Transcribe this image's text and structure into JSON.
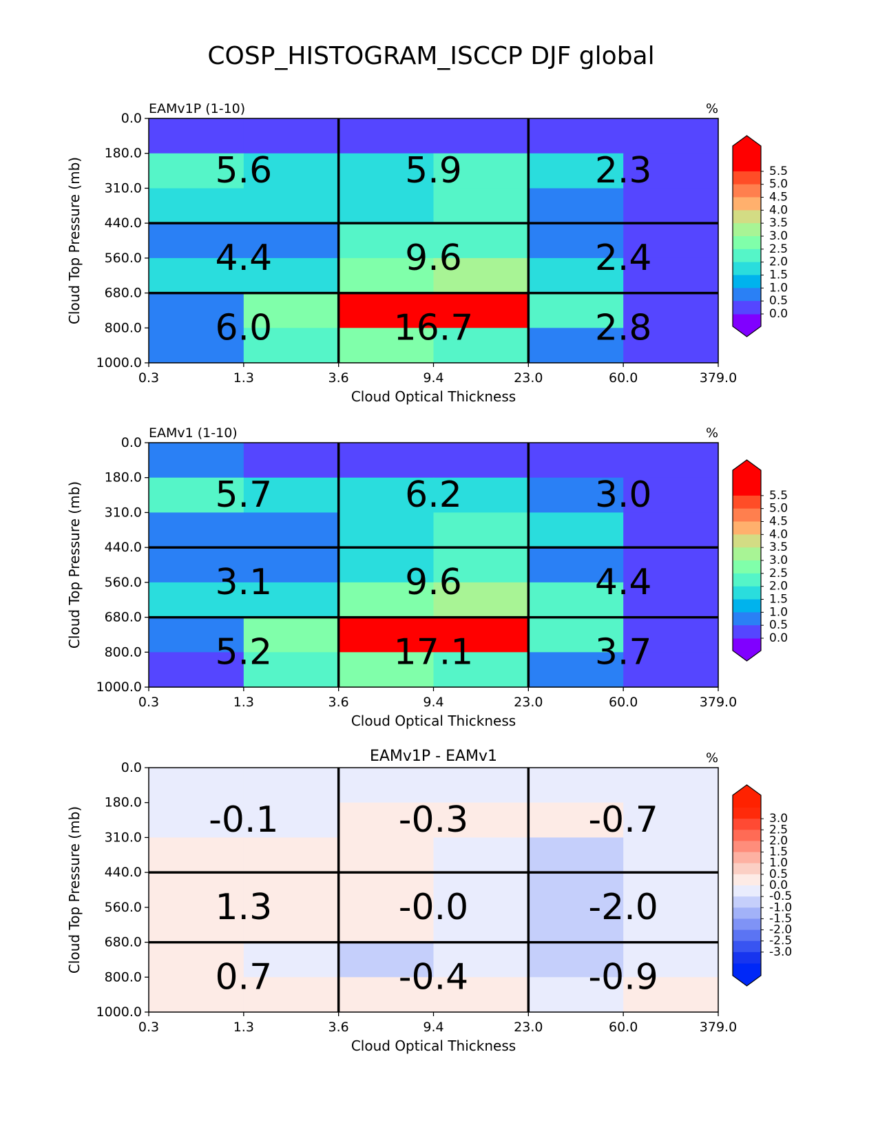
{
  "figure": {
    "title": "COSP_HISTOGRAM_ISCCP DJF global"
  },
  "chart_data": [
    {
      "type": "heatmap",
      "title": "EAMv1P (1-10)",
      "units": "%",
      "xlabel": "Cloud Optical Thickness",
      "ylabel": "Cloud Top Pressure (mb)",
      "x_ticks": [
        "0.3",
        "1.3",
        "3.6",
        "9.4",
        "23.0",
        "60.0",
        "379.0"
      ],
      "y_ticks": [
        "0.0",
        "180.0",
        "310.0",
        "440.0",
        "560.0",
        "680.0",
        "800.0",
        "1000.0"
      ],
      "cells": [
        [
          0.2,
          0.2,
          0.2,
          0.2,
          0.2,
          0.2
        ],
        [
          2.0,
          1.5,
          1.5,
          2.0,
          1.5,
          0.2
        ],
        [
          1.5,
          1.5,
          1.5,
          2.0,
          0.8,
          0.2
        ],
        [
          0.8,
          0.8,
          2.0,
          2.0,
          0.8,
          0.2
        ],
        [
          1.5,
          1.5,
          2.8,
          3.3,
          1.5,
          0.2
        ],
        [
          0.8,
          2.8,
          5.8,
          5.8,
          2.3,
          0.2
        ],
        [
          0.8,
          2.0,
          2.8,
          2.3,
          0.8,
          0.2
        ]
      ],
      "block_values": [
        [
          "5.6",
          "5.9",
          "2.3"
        ],
        [
          "4.4",
          "9.6",
          "2.4"
        ],
        [
          "6.0",
          "16.7",
          "2.8"
        ]
      ],
      "colorbar": {
        "ticks": [
          "5.5",
          "5.0",
          "4.5",
          "4.0",
          "3.5",
          "3.0",
          "2.5",
          "2.0",
          "1.5",
          "1.0",
          "0.5",
          "0.0"
        ],
        "colors": [
          "#ff0000",
          "#ff4d27",
          "#ff7f4e",
          "#ffb06d",
          "#d3dc84",
          "#a8f495",
          "#80ffaa",
          "#55f5c8",
          "#2adddd",
          "#00b3ed",
          "#2a80f5",
          "#5546ff"
        ],
        "under_color": "#8000ff",
        "over_color": "#ff0000",
        "min": 0.0,
        "max": 6.0
      }
    },
    {
      "type": "heatmap",
      "title": "EAMv1 (1-10)",
      "units": "%",
      "xlabel": "Cloud Optical Thickness",
      "ylabel": "Cloud Top Pressure (mb)",
      "x_ticks": [
        "0.3",
        "1.3",
        "3.6",
        "9.4",
        "23.0",
        "60.0",
        "379.0"
      ],
      "y_ticks": [
        "0.0",
        "180.0",
        "310.0",
        "440.0",
        "560.0",
        "680.0",
        "800.0",
        "1000.0"
      ],
      "cells": [
        [
          0.8,
          0.2,
          0.2,
          0.2,
          0.2,
          0.2
        ],
        [
          2.0,
          1.5,
          1.5,
          1.5,
          0.8,
          0.2
        ],
        [
          0.8,
          0.8,
          1.5,
          2.3,
          1.5,
          0.2
        ],
        [
          0.8,
          0.8,
          1.5,
          2.0,
          0.8,
          0.2
        ],
        [
          1.5,
          1.5,
          2.8,
          3.3,
          2.3,
          0.2
        ],
        [
          0.8,
          2.8,
          5.8,
          5.8,
          2.3,
          0.2
        ],
        [
          0.2,
          2.0,
          2.8,
          2.0,
          0.8,
          0.2
        ]
      ],
      "block_values": [
        [
          "5.7",
          "6.2",
          "3.0"
        ],
        [
          "3.1",
          "9.6",
          "4.4"
        ],
        [
          "5.2",
          "17.1",
          "3.7"
        ]
      ],
      "colorbar": {
        "ticks": [
          "5.5",
          "5.0",
          "4.5",
          "4.0",
          "3.5",
          "3.0",
          "2.5",
          "2.0",
          "1.5",
          "1.0",
          "0.5",
          "0.0"
        ],
        "colors": [
          "#ff0000",
          "#ff4d27",
          "#ff7f4e",
          "#ffb06d",
          "#d3dc84",
          "#a8f495",
          "#80ffaa",
          "#55f5c8",
          "#2adddd",
          "#00b3ed",
          "#2a80f5",
          "#5546ff"
        ],
        "under_color": "#8000ff",
        "over_color": "#ff0000",
        "min": 0.0,
        "max": 6.0
      }
    },
    {
      "type": "heatmap",
      "title": "EAMv1P - EAMv1",
      "units": "%",
      "xlabel": "Cloud Optical Thickness",
      "ylabel": "Cloud Top Pressure (mb)",
      "x_ticks": [
        "0.3",
        "1.3",
        "3.6",
        "9.4",
        "23.0",
        "60.0",
        "379.0"
      ],
      "y_ticks": [
        "0.0",
        "180.0",
        "310.0",
        "440.0",
        "560.0",
        "680.0",
        "800.0",
        "1000.0"
      ],
      "cells": [
        [
          -0.2,
          -0.2,
          -0.2,
          -0.2,
          -0.2,
          -0.2
        ],
        [
          -0.2,
          -0.2,
          0.2,
          0.2,
          0.2,
          -0.2
        ],
        [
          0.2,
          0.2,
          0.2,
          -0.2,
          -0.7,
          -0.2
        ],
        [
          0.2,
          0.2,
          0.2,
          -0.2,
          -0.7,
          -0.2
        ],
        [
          0.2,
          0.2,
          0.2,
          -0.2,
          -0.7,
          -0.2
        ],
        [
          0.2,
          -0.2,
          -0.7,
          -0.2,
          -0.7,
          -0.2
        ],
        [
          0.2,
          0.2,
          0.2,
          0.2,
          -0.2,
          0.2
        ]
      ],
      "block_values": [
        [
          "-0.1",
          "-0.3",
          "-0.7"
        ],
        [
          "1.3",
          "-0.0",
          "-2.0"
        ],
        [
          "0.7",
          "-0.4",
          "-0.9"
        ]
      ],
      "colorbar": {
        "ticks": [
          "3.0",
          "2.5",
          "2.0",
          "1.5",
          "1.0",
          "0.5",
          "0.0",
          "-0.5",
          "-1.0",
          "-1.5",
          "-2.0",
          "-2.5",
          "-3.0"
        ],
        "colors": [
          "#ff2a0a",
          "#ff4a33",
          "#ff6b55",
          "#fe8d7b",
          "#fdb1a2",
          "#fbcfc4",
          "#fdebe6",
          "#e9ecfd",
          "#c5cffb",
          "#a2b2f8",
          "#7f93f6",
          "#5b74f3",
          "#3854f1",
          "#1735ef"
        ],
        "under_color": "#0028f7",
        "over_color": "#ff2200",
        "min": -3.5,
        "max": 3.5
      }
    }
  ]
}
